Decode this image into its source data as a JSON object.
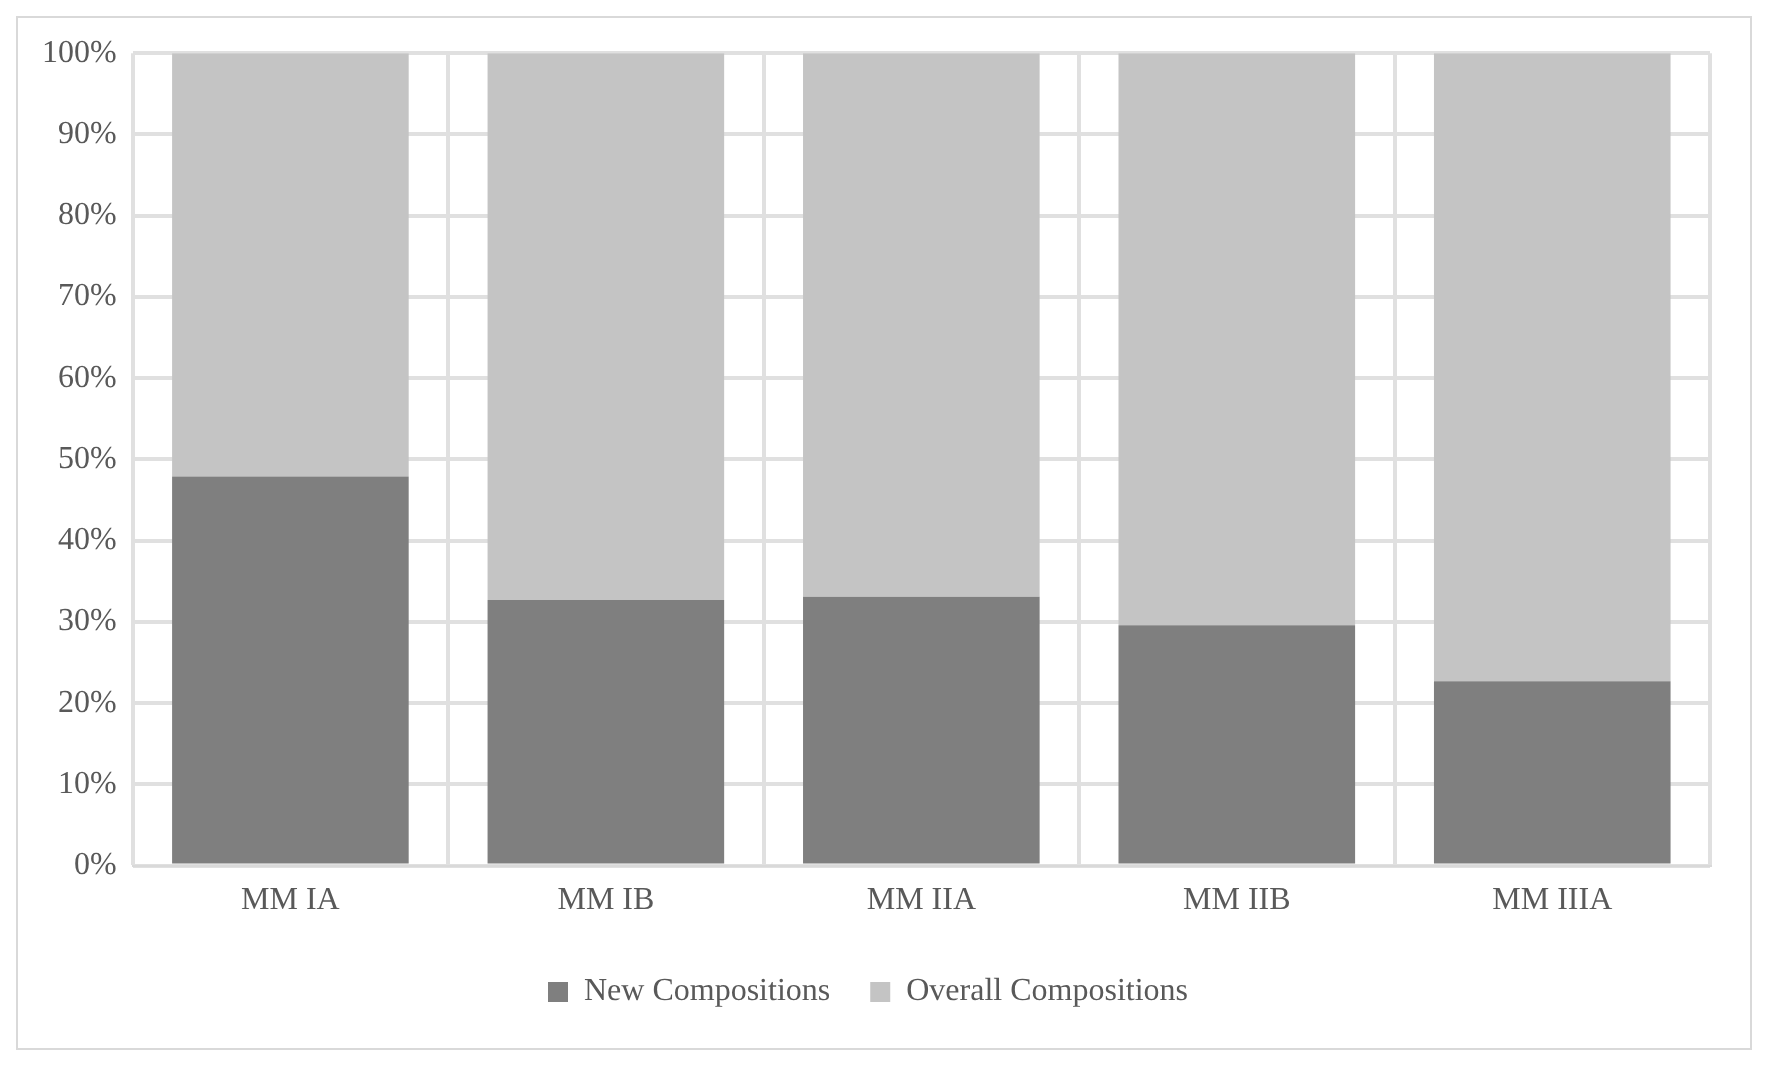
{
  "chart_data": {
    "type": "bar",
    "stacked": true,
    "categories": [
      "MM IA",
      "MM IB",
      "MM IIA",
      "MM IIB",
      "MM IIIA"
    ],
    "series": [
      {
        "name": "New Compositions",
        "color": "#7f7f7f",
        "values": [
          47.9,
          32.7,
          33.1,
          29.6,
          22.7
        ]
      },
      {
        "name": "Overall Compositions",
        "color": "#c4c4c4",
        "values": [
          52.1,
          67.3,
          66.9,
          70.4,
          77.3
        ]
      }
    ],
    "ylim": [
      0,
      100
    ],
    "yticks": [
      {
        "value": 0,
        "label": "0%"
      },
      {
        "value": 10,
        "label": "10%"
      },
      {
        "value": 20,
        "label": "20%"
      },
      {
        "value": 30,
        "label": "30%"
      },
      {
        "value": 40,
        "label": "40%"
      },
      {
        "value": 50,
        "label": "50%"
      },
      {
        "value": 60,
        "label": "60%"
      },
      {
        "value": 70,
        "label": "70%"
      },
      {
        "value": 80,
        "label": "80%"
      },
      {
        "value": 90,
        "label": "90%"
      },
      {
        "value": 100,
        "label": "100%"
      }
    ],
    "grid": true,
    "legend": "bottom"
  }
}
